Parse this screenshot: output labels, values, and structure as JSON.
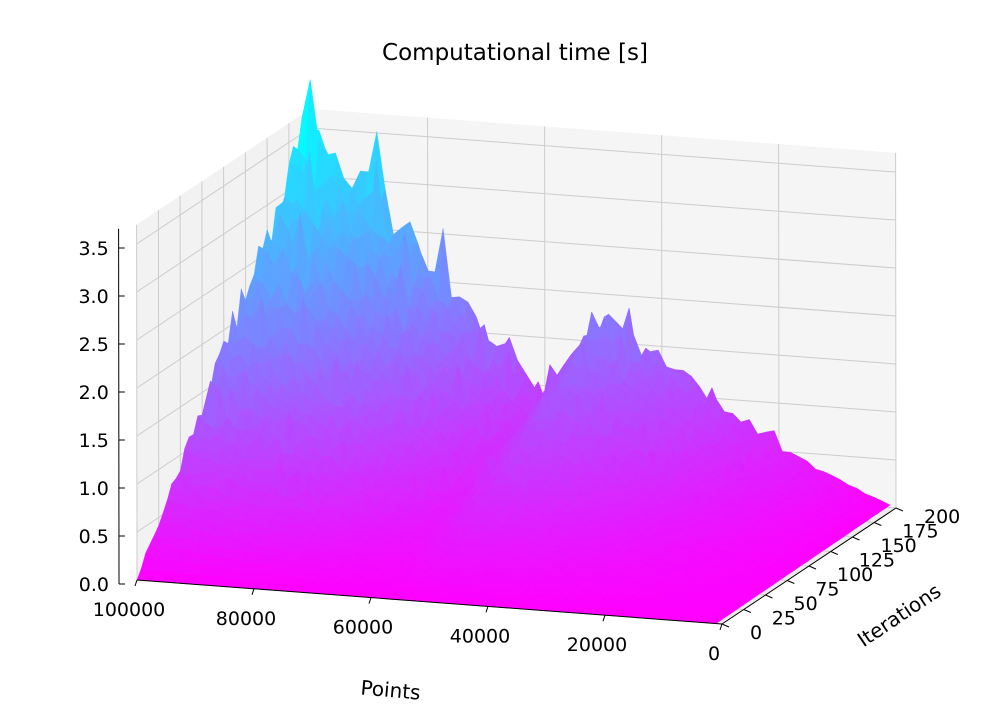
{
  "chart_data": {
    "type": "surface",
    "title": "Computational time [s]",
    "xlabel": "Points",
    "ylabel": "Iterations",
    "zlabel": "",
    "x_ticks": [
      "0",
      "20000",
      "40000",
      "60000",
      "80000",
      "100000"
    ],
    "y_ticks": [
      "0",
      "25",
      "50",
      "75",
      "100",
      "125",
      "150",
      "175",
      "200"
    ],
    "z_ticks": [
      "0.0",
      "0.5",
      "1.0",
      "1.5",
      "2.0",
      "2.5",
      "3.0",
      "3.5"
    ],
    "xlim": [
      0,
      100000
    ],
    "ylim": [
      0,
      200
    ],
    "zlim": [
      0,
      3.7
    ],
    "colormap": "cool",
    "grid": true,
    "points": [
      0,
      10000,
      20000,
      30000,
      40000,
      50000,
      60000,
      70000,
      80000,
      90000,
      100000
    ],
    "iterations": [
      0,
      25,
      50,
      75,
      100,
      125,
      150,
      175,
      200
    ],
    "time_at_200_iterations": [
      0.0,
      0.25,
      0.55,
      0.95,
      1.35,
      1.75,
      0.85,
      1.5,
      2.2,
      2.9,
      3.6
    ],
    "time_scales_linearly_with_iterations": true
  },
  "colors": {
    "low": "#ff00ff",
    "high": "#00ffff",
    "pane": "#f2f2f2",
    "grid": "#cccccc"
  }
}
